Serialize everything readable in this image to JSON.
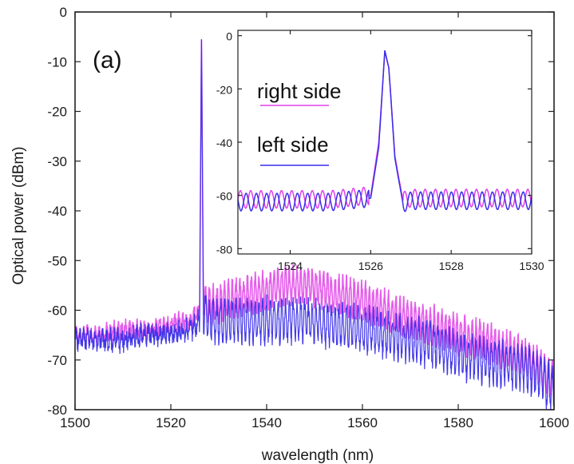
{
  "chart_data": [
    {
      "type": "line",
      "panel_label": "(a)",
      "xlabel": "wavelength (nm)",
      "ylabel": "Optical power (dBm)",
      "xlim": [
        1500,
        1600
      ],
      "ylim": [
        -80,
        0
      ],
      "xticks": [
        "1500",
        "1520",
        "1540",
        "1560",
        "1580",
        "1600"
      ],
      "yticks": [
        "0",
        "-10",
        "-20",
        "-30",
        "-40",
        "-50",
        "-60",
        "-70",
        "-80"
      ],
      "grid": false,
      "series": [
        {
          "name": "right side",
          "color": "#e040e8",
          "x": [
            1500,
            1505,
            1510,
            1515,
            1520,
            1524,
            1526,
            1526.4,
            1526.8,
            1528,
            1532,
            1536,
            1540,
            1544,
            1548,
            1552,
            1556,
            1560,
            1565,
            1570,
            1575,
            1580,
            1585,
            1590,
            1595,
            1600
          ],
          "y": [
            -65,
            -65,
            -64,
            -64,
            -63,
            -62,
            -60,
            -5.5,
            -58,
            -59,
            -58,
            -57,
            -56,
            -55,
            -55,
            -56,
            -57,
            -58,
            -60,
            -62,
            -63,
            -65,
            -66,
            -68,
            -70,
            -74
          ]
        },
        {
          "name": "left side",
          "color": "#3a2ee8",
          "x": [
            1500,
            1505,
            1510,
            1515,
            1520,
            1524,
            1526,
            1526.4,
            1526.8,
            1528,
            1532,
            1536,
            1540,
            1544,
            1548,
            1552,
            1556,
            1560,
            1565,
            1570,
            1575,
            1580,
            1585,
            1590,
            1595,
            1600
          ],
          "y": [
            -66,
            -66,
            -66,
            -65,
            -65,
            -64,
            -62,
            -5.5,
            -60,
            -62,
            -62,
            -62,
            -62,
            -62,
            -62,
            -63,
            -63,
            -64,
            -65,
            -66,
            -67,
            -69,
            -70,
            -71,
            -72,
            -76
          ]
        }
      ]
    },
    {
      "type": "line",
      "role": "inset",
      "xlabel": "",
      "ylabel": "",
      "xlim": [
        1522.7,
        1530
      ],
      "ylim": [
        -82,
        2
      ],
      "xticks": [
        "1524",
        "1526",
        "1528",
        "1530"
      ],
      "yticks": [
        "0",
        "-20",
        "-40",
        "-60",
        "-80"
      ],
      "grid": false,
      "legend": {
        "placement": "top-left",
        "entries": [
          "right side",
          "left side"
        ]
      },
      "series": [
        {
          "name": "right side",
          "color": "#e040e8",
          "x": [
            1522.7,
            1524,
            1525,
            1526.0,
            1526.2,
            1526.35,
            1526.45,
            1526.6,
            1526.8,
            1527,
            1528,
            1529,
            1530
          ],
          "y": [
            -61.5,
            -61.5,
            -61.5,
            -60,
            -40,
            -6,
            -12,
            -45,
            -62,
            -61,
            -61,
            -61,
            -61
          ]
        },
        {
          "name": "left side",
          "color": "#3a2ee8",
          "x": [
            1522.7,
            1524,
            1525,
            1526.0,
            1526.2,
            1526.35,
            1526.45,
            1526.6,
            1526.8,
            1527,
            1528,
            1529,
            1530
          ],
          "y": [
            -62.5,
            -62.5,
            -62.5,
            -61,
            -42,
            -5.5,
            -12,
            -46,
            -63,
            -62,
            -62,
            -62,
            -62
          ]
        }
      ]
    }
  ]
}
